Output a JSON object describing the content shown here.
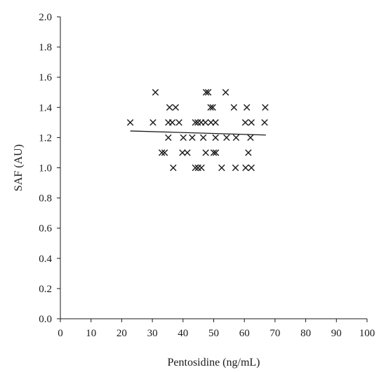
{
  "chart_data": {
    "type": "scatter",
    "xlabel": "Pentosidine (ng/mL)",
    "ylabel": "SAF (AU)",
    "xlim": [
      0,
      100
    ],
    "ylim": [
      0,
      2.0
    ],
    "x_ticks": [
      "0",
      "10",
      "20",
      "30",
      "40",
      "50",
      "60",
      "70",
      "80",
      "90",
      "100"
    ],
    "y_ticks": [
      "0.0",
      "0.2",
      "0.4",
      "0.6",
      "0.8",
      "1.0",
      "1.2",
      "1.4",
      "1.6",
      "1.8",
      "2.0"
    ],
    "marker": "x",
    "grid": false,
    "points": [
      {
        "x": 31.0,
        "y": 1.5
      },
      {
        "x": 47.5,
        "y": 1.5
      },
      {
        "x": 48.2,
        "y": 1.5
      },
      {
        "x": 53.9,
        "y": 1.5
      },
      {
        "x": 35.6,
        "y": 1.4
      },
      {
        "x": 37.6,
        "y": 1.4
      },
      {
        "x": 49.0,
        "y": 1.4
      },
      {
        "x": 49.7,
        "y": 1.4
      },
      {
        "x": 56.6,
        "y": 1.4
      },
      {
        "x": 60.8,
        "y": 1.4
      },
      {
        "x": 66.8,
        "y": 1.4
      },
      {
        "x": 22.8,
        "y": 1.3
      },
      {
        "x": 30.2,
        "y": 1.3
      },
      {
        "x": 35.2,
        "y": 1.3
      },
      {
        "x": 36.5,
        "y": 1.3
      },
      {
        "x": 38.7,
        "y": 1.3
      },
      {
        "x": 44.0,
        "y": 1.3
      },
      {
        "x": 44.8,
        "y": 1.3
      },
      {
        "x": 45.9,
        "y": 1.3
      },
      {
        "x": 47.3,
        "y": 1.3
      },
      {
        "x": 49.1,
        "y": 1.3
      },
      {
        "x": 50.6,
        "y": 1.3
      },
      {
        "x": 60.3,
        "y": 1.3
      },
      {
        "x": 62.3,
        "y": 1.3
      },
      {
        "x": 66.6,
        "y": 1.3
      },
      {
        "x": 35.2,
        "y": 1.2
      },
      {
        "x": 40.1,
        "y": 1.2
      },
      {
        "x": 43.0,
        "y": 1.2
      },
      {
        "x": 46.6,
        "y": 1.2
      },
      {
        "x": 50.6,
        "y": 1.2
      },
      {
        "x": 54.2,
        "y": 1.2
      },
      {
        "x": 57.3,
        "y": 1.2
      },
      {
        "x": 62.0,
        "y": 1.2
      },
      {
        "x": 33.1,
        "y": 1.1
      },
      {
        "x": 34.0,
        "y": 1.1
      },
      {
        "x": 39.8,
        "y": 1.1
      },
      {
        "x": 41.4,
        "y": 1.1
      },
      {
        "x": 47.4,
        "y": 1.1
      },
      {
        "x": 50.0,
        "y": 1.1
      },
      {
        "x": 50.7,
        "y": 1.1
      },
      {
        "x": 61.3,
        "y": 1.1
      },
      {
        "x": 36.8,
        "y": 1.0
      },
      {
        "x": 44.0,
        "y": 1.0
      },
      {
        "x": 44.9,
        "y": 1.0
      },
      {
        "x": 46.0,
        "y": 1.0
      },
      {
        "x": 52.6,
        "y": 1.0
      },
      {
        "x": 57.1,
        "y": 1.0
      },
      {
        "x": 60.4,
        "y": 1.0
      },
      {
        "x": 62.3,
        "y": 1.0
      }
    ],
    "trendline": {
      "x": [
        22.8,
        67.0
      ],
      "y": [
        1.244,
        1.217
      ]
    }
  }
}
